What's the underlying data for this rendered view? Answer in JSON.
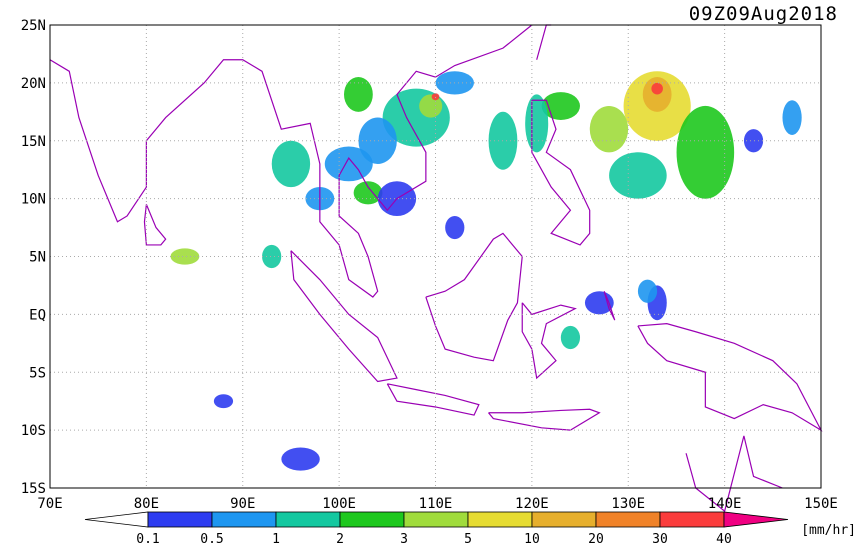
{
  "map": {
    "title": "09Z09Aug2018",
    "lonlim": [
      70,
      150
    ],
    "latlim": [
      -15,
      25
    ],
    "lon_ticks": [
      {
        "value": 70,
        "label": "70E"
      },
      {
        "value": 80,
        "label": "80E"
      },
      {
        "value": 90,
        "label": "90E"
      },
      {
        "value": 100,
        "label": "100E"
      },
      {
        "value": 110,
        "label": "110E"
      },
      {
        "value": 120,
        "label": "120E"
      },
      {
        "value": 130,
        "label": "130E"
      },
      {
        "value": 140,
        "label": "140E"
      },
      {
        "value": 150,
        "label": "150E"
      }
    ],
    "lat_ticks": [
      {
        "value": 25,
        "label": "25N"
      },
      {
        "value": 20,
        "label": "20N"
      },
      {
        "value": 15,
        "label": "15N"
      },
      {
        "value": 10,
        "label": "10N"
      },
      {
        "value": 5,
        "label": "5N"
      },
      {
        "value": 0,
        "label": "EQ"
      },
      {
        "value": -5,
        "label": "5S"
      },
      {
        "value": -10,
        "label": "10S"
      },
      {
        "value": -15,
        "label": "15S"
      }
    ],
    "colorbar": {
      "levels": [
        0.1,
        0.5,
        1,
        2,
        3,
        5,
        10,
        20,
        30,
        40
      ],
      "colors": [
        "#ffffff",
        "#2d3cf0",
        "#1e96f0",
        "#14c8a0",
        "#1ec81e",
        "#a0dc3c",
        "#e6dc32",
        "#e6af2d",
        "#f08228",
        "#fa3c3c",
        "#f00082"
      ],
      "unit": "[mm/hr]"
    }
  }
}
